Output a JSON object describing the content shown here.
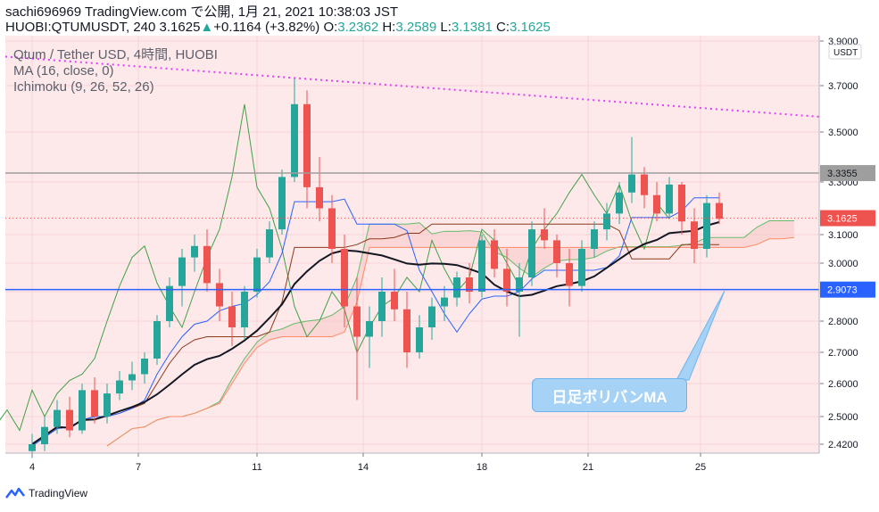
{
  "header": {
    "line1": "sachi696969 TradingView.com で公開, 1月 21, 2021 10:38:03 JST",
    "line2_prefix": "HUOBI:QTUMUSDT, 240 3.1625",
    "change_arrow": "▲",
    "change": "+0.1164 (+3.82%)",
    "o_label": "O:",
    "o": "3.2362",
    "h_label": "H:",
    "h": "3.2589",
    "l_label": "L:",
    "l": "3.1381",
    "c_label": "C:",
    "c": "3.1625"
  },
  "legend": {
    "symbol": "Qtum / Tether USD, 4時間, HUOBI",
    "ma": "MA (16, close, 0)",
    "ichimoku": "Ichimoku (9, 26, 52, 26)"
  },
  "callout": "日足ボリバンMA",
  "footer": {
    "brand": "TradingView"
  },
  "colors": {
    "up": "#26a69a",
    "down": "#ef5350",
    "ma": "#131722",
    "tenkan": "#2962ff",
    "kijun": "#8b3a1a",
    "chikou": "#43a047",
    "trendline": "#e040fb",
    "hline_gray": "#9e9e9e",
    "hline_blue": "#2962ff"
  },
  "chart_data": {
    "type": "candlestick",
    "symbol": "HUOBI:QTUMUSDT",
    "timeframe": "240",
    "currency": "USDT",
    "y_ticks": [
      3.9,
      3.7,
      3.5,
      3.3,
      3.1,
      3.0,
      2.9,
      2.8,
      2.7,
      2.6,
      2.5,
      2.42
    ],
    "y_labels": [
      "3.9000",
      "3.7000",
      "3.5000",
      "3.3000",
      "3.1000",
      "3.0000",
      "2.9000",
      "2.8000",
      "2.7000",
      "2.6000",
      "2.5000",
      "2.4200"
    ],
    "x_ticks": [
      "4",
      "7",
      "11",
      "14",
      "18",
      "21",
      "25"
    ],
    "x_tick_pos": [
      0,
      8.5,
      18,
      26.5,
      36,
      44.5,
      53.5
    ],
    "hlines": [
      {
        "price": 3.3355,
        "label": "3.3355",
        "style": "gray"
      },
      {
        "price": 2.9073,
        "label": "2.9073",
        "style": "blue"
      }
    ],
    "last_price": {
      "price": 3.1625,
      "label": "3.1625"
    },
    "trendline": [
      {
        "x": 0,
        "price": 3.83
      },
      {
        "x": 64.5,
        "price": 3.56
      }
    ],
    "candles": [
      [
        2.4,
        2.45,
        2.38,
        2.42
      ],
      [
        2.42,
        2.5,
        2.4,
        2.47
      ],
      [
        2.47,
        2.55,
        2.45,
        2.52
      ],
      [
        2.52,
        2.56,
        2.44,
        2.46
      ],
      [
        2.46,
        2.6,
        2.45,
        2.58
      ],
      [
        2.58,
        2.62,
        2.48,
        2.5
      ],
      [
        2.5,
        2.6,
        2.48,
        2.57
      ],
      [
        2.57,
        2.64,
        2.55,
        2.61
      ],
      [
        2.61,
        2.67,
        2.58,
        2.63
      ],
      [
        2.63,
        2.7,
        2.6,
        2.68
      ],
      [
        2.68,
        2.82,
        2.66,
        2.8
      ],
      [
        2.8,
        2.95,
        2.78,
        2.92
      ],
      [
        2.92,
        3.05,
        2.85,
        3.02
      ],
      [
        3.02,
        3.1,
        2.97,
        3.06
      ],
      [
        3.06,
        3.12,
        2.9,
        2.93
      ],
      [
        2.93,
        2.98,
        2.8,
        2.85
      ],
      [
        2.85,
        2.9,
        2.72,
        2.78
      ],
      [
        2.78,
        2.92,
        2.74,
        2.9
      ],
      [
        2.9,
        3.05,
        2.88,
        3.02
      ],
      [
        3.02,
        3.15,
        3.0,
        3.12
      ],
      [
        3.12,
        3.35,
        3.1,
        3.32
      ],
      [
        3.32,
        3.73,
        3.3,
        3.62
      ],
      [
        3.62,
        3.68,
        3.2,
        3.28
      ],
      [
        3.28,
        3.4,
        3.15,
        3.2
      ],
      [
        3.2,
        3.25,
        3.0,
        3.05
      ],
      [
        3.05,
        3.1,
        2.78,
        2.85
      ],
      [
        2.85,
        2.95,
        2.55,
        2.75
      ],
      [
        2.75,
        2.85,
        2.65,
        2.8
      ],
      [
        2.8,
        2.95,
        2.75,
        2.9
      ],
      [
        2.9,
        2.98,
        2.8,
        2.84
      ],
      [
        2.84,
        2.9,
        2.65,
        2.7
      ],
      [
        2.7,
        2.82,
        2.68,
        2.78
      ],
      [
        2.78,
        2.88,
        2.74,
        2.85
      ],
      [
        2.85,
        2.92,
        2.8,
        2.88
      ],
      [
        2.88,
        2.97,
        2.85,
        2.95
      ],
      [
        2.95,
        3.0,
        2.86,
        2.9
      ],
      [
        2.9,
        3.1,
        2.88,
        3.08
      ],
      [
        3.08,
        3.12,
        2.95,
        2.98
      ],
      [
        2.98,
        3.05,
        2.85,
        2.9
      ],
      [
        2.9,
        3.0,
        2.75,
        2.95
      ],
      [
        2.95,
        3.15,
        2.92,
        3.12
      ],
      [
        3.12,
        3.2,
        3.05,
        3.08
      ],
      [
        3.08,
        3.1,
        2.95,
        3.0
      ],
      [
        3.0,
        3.05,
        2.85,
        2.92
      ],
      [
        2.92,
        3.08,
        2.9,
        3.05
      ],
      [
        3.05,
        3.15,
        3.02,
        3.12
      ],
      [
        3.12,
        3.22,
        3.08,
        3.18
      ],
      [
        3.18,
        3.3,
        3.14,
        3.26
      ],
      [
        3.26,
        3.48,
        3.22,
        3.33
      ],
      [
        3.33,
        3.36,
        3.2,
        3.25
      ],
      [
        3.25,
        3.3,
        3.15,
        3.18
      ],
      [
        3.18,
        3.32,
        3.16,
        3.29
      ],
      [
        3.29,
        3.3,
        3.1,
        3.15
      ],
      [
        3.15,
        3.2,
        3.0,
        3.05
      ],
      [
        3.05,
        3.25,
        3.02,
        3.22
      ],
      [
        3.22,
        3.26,
        3.14,
        3.16
      ]
    ]
  }
}
